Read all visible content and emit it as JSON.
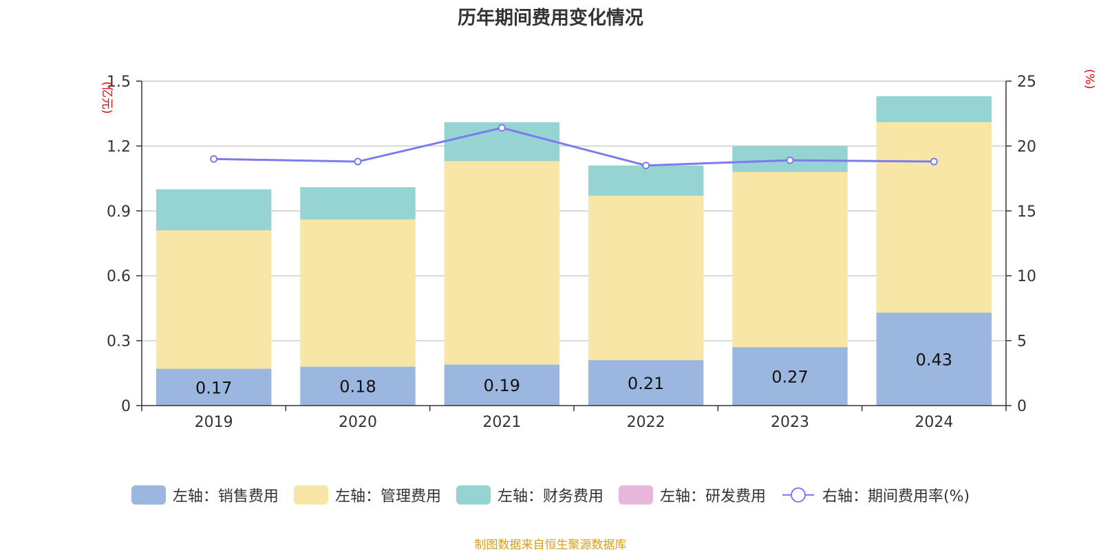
{
  "chart_data": {
    "type": "bar",
    "stacked": true,
    "title": "历年期间费用变化情况",
    "categories": [
      "2019",
      "2020",
      "2021",
      "2022",
      "2023",
      "2024"
    ],
    "left_axis": {
      "unit": "(亿元)",
      "ylim": [
        0,
        1.5
      ],
      "ticks": [
        "0",
        "0.3",
        "0.6",
        "0.9",
        "1.2",
        "1.5"
      ]
    },
    "right_axis": {
      "unit": "(%)",
      "ylim": [
        0,
        25
      ],
      "ticks": [
        "0",
        "5",
        "10",
        "15",
        "20",
        "25"
      ]
    },
    "series": [
      {
        "name": "左轴：销售费用",
        "axis": "left",
        "type": "bar",
        "color": "#9bb7e0",
        "values": [
          0.17,
          0.18,
          0.19,
          0.21,
          0.27,
          0.43
        ],
        "labels": [
          "0.17",
          "0.18",
          "0.19",
          "0.21",
          "0.27",
          "0.43"
        ]
      },
      {
        "name": "左轴：管理费用",
        "axis": "left",
        "type": "bar",
        "color": "#f7e6a6",
        "values": [
          0.64,
          0.68,
          0.94,
          0.76,
          0.81,
          0.88
        ]
      },
      {
        "name": "左轴：财务费用",
        "axis": "left",
        "type": "bar",
        "color": "#96d4d4",
        "values": [
          0.19,
          0.15,
          0.18,
          0.14,
          0.12,
          0.12
        ]
      },
      {
        "name": "左轴：研发费用",
        "axis": "left",
        "type": "bar",
        "color": "#e8b8da",
        "values": [
          0,
          0,
          0,
          0,
          0,
          0
        ]
      },
      {
        "name": "右轴：期间费用率(%)",
        "axis": "right",
        "type": "line",
        "color": "#7b7bef",
        "values": [
          19.0,
          18.8,
          21.4,
          18.5,
          18.9,
          18.8
        ]
      }
    ],
    "grid": true,
    "legend_position": "bottom"
  },
  "source": "制图数据来自恒生聚源数据库"
}
